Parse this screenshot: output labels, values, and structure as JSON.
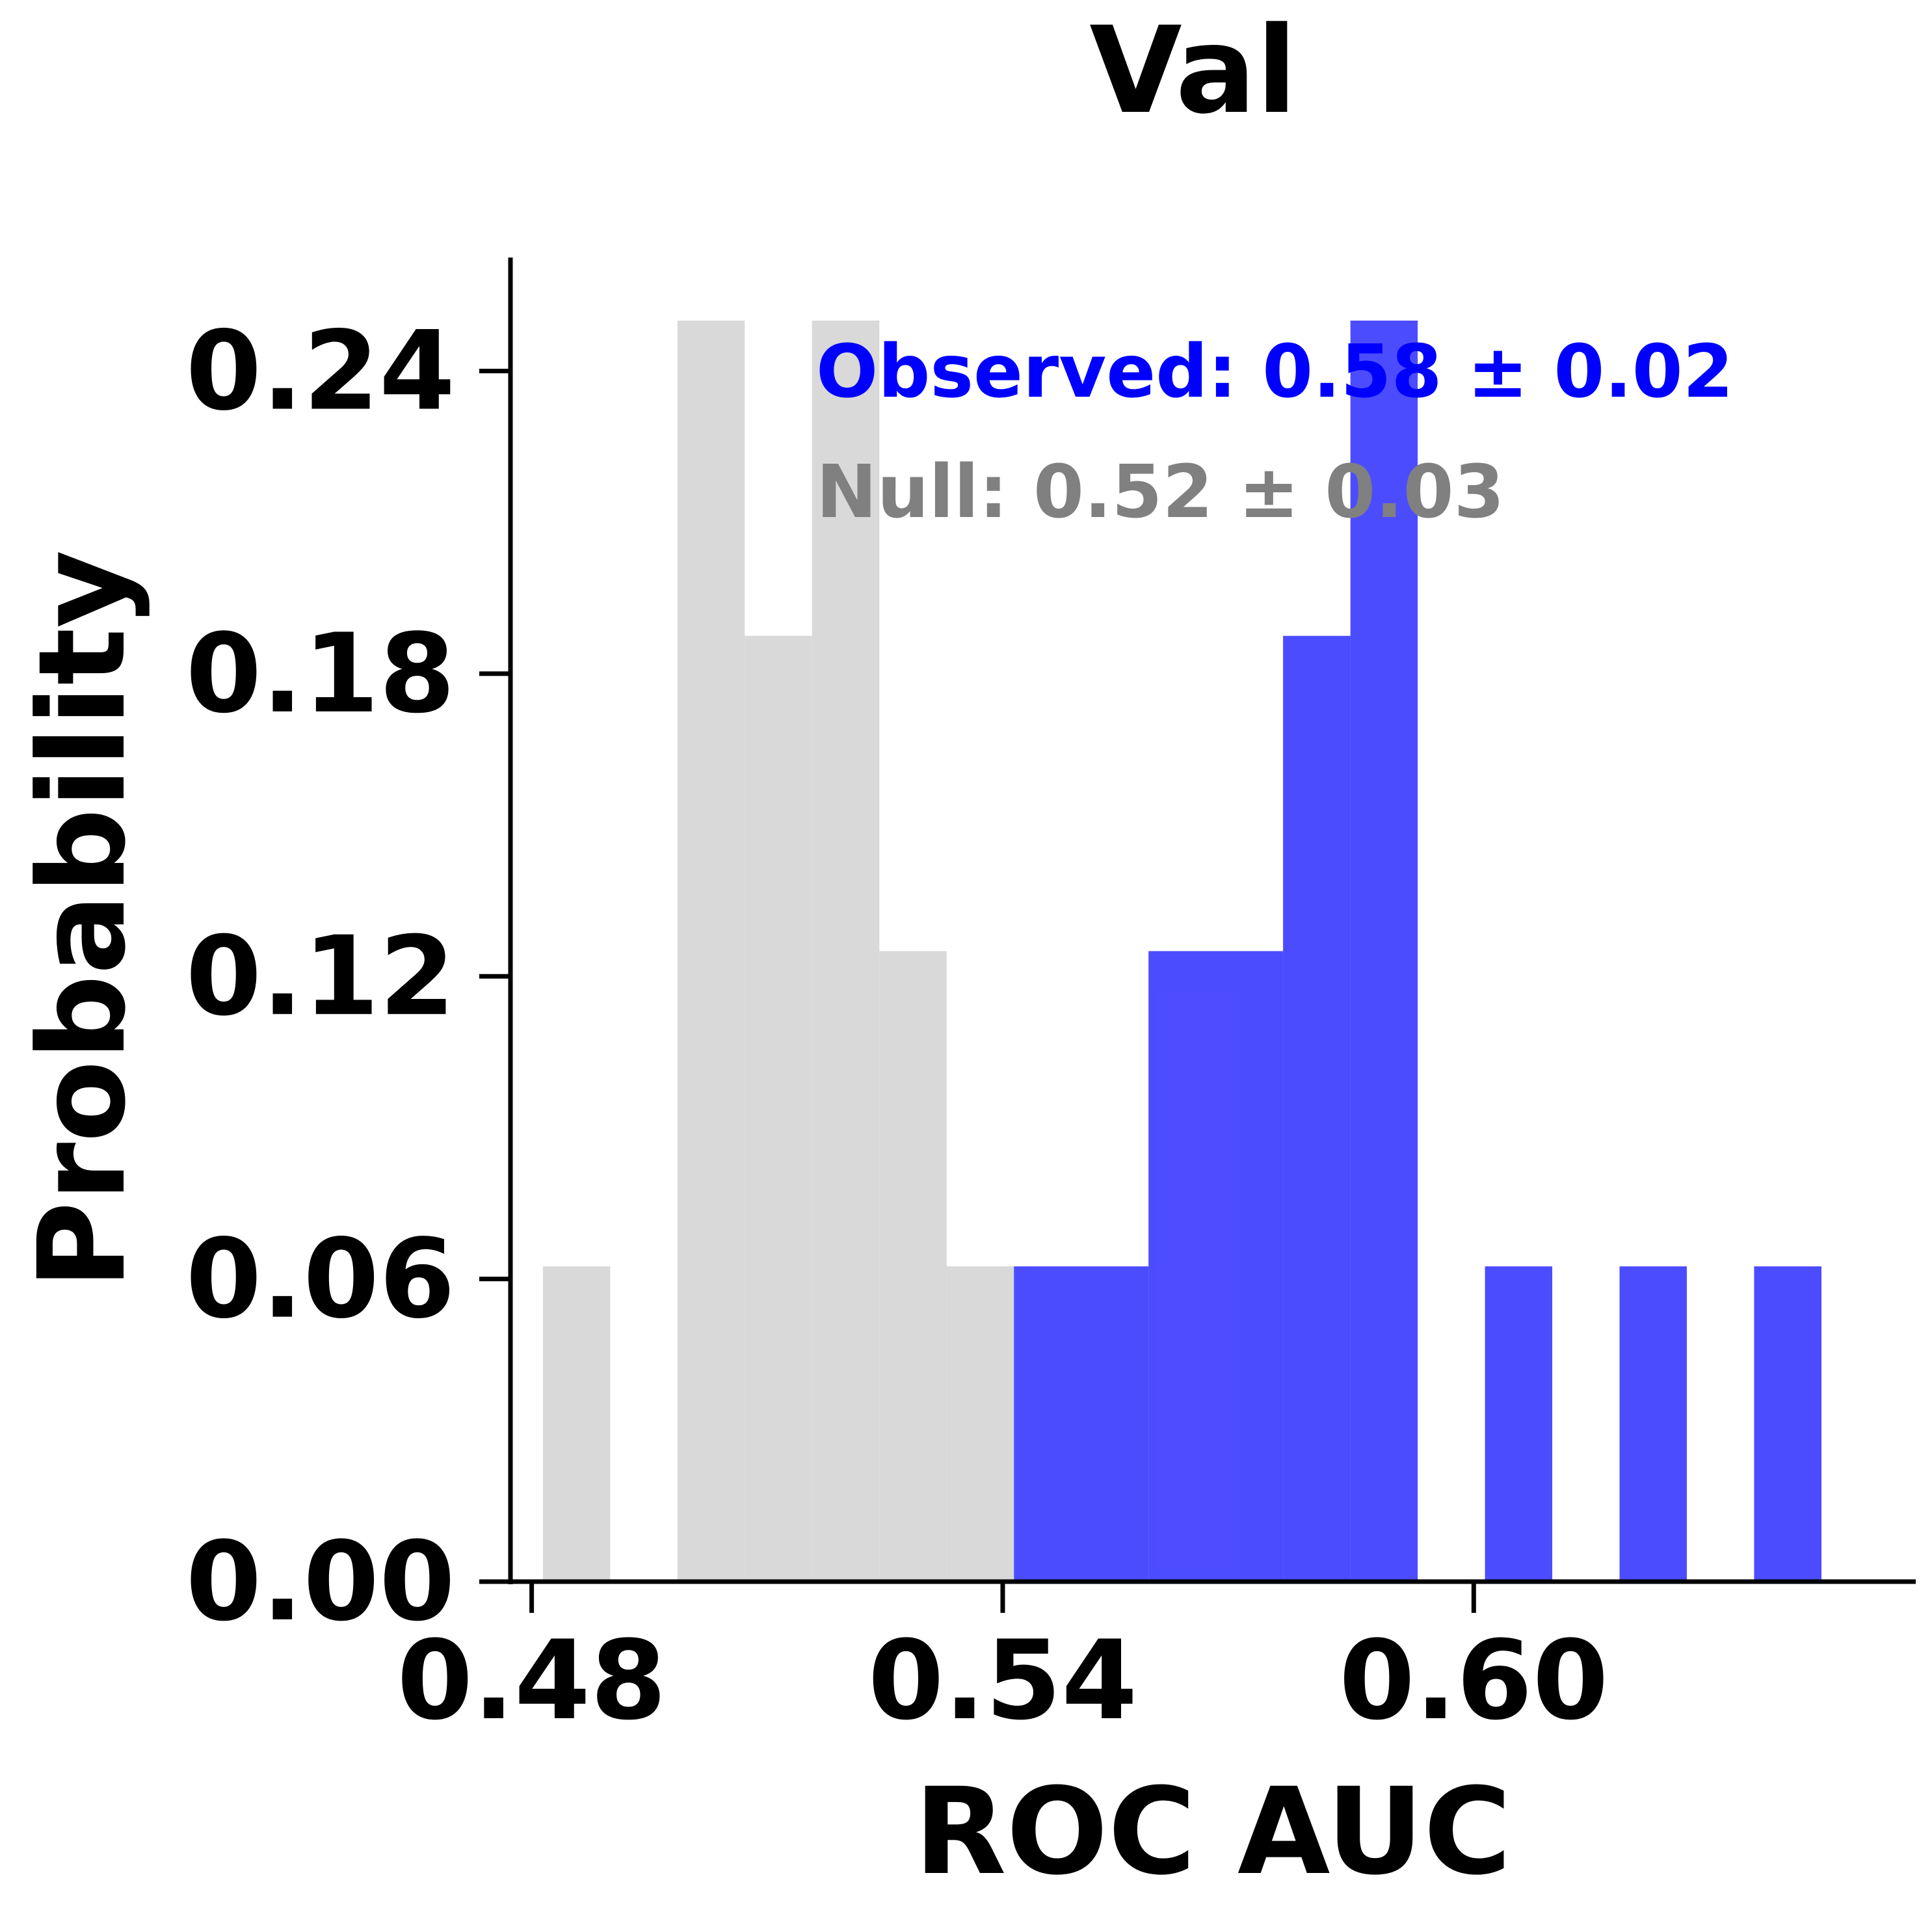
{
  "chart_data": {
    "type": "bar",
    "title": "Val",
    "xlabel": "ROC AUC",
    "ylabel": "Probability",
    "xlim": [
      0.4773,
      0.6563
    ],
    "ylim": [
      0,
      0.2625
    ],
    "xticks": [
      "0.48",
      "0.54",
      "0.60"
    ],
    "yticks": [
      "0.00",
      "0.06",
      "0.12",
      "0.18",
      "0.24"
    ],
    "grid": false,
    "bin_width": 0.00857,
    "series": [
      {
        "color": "#d9d9d9",
        "bins": [
          {
            "x0": 0.48143,
            "x1": 0.49,
            "value": 0.0625
          },
          {
            "x0": 0.49857,
            "x1": 0.50714,
            "value": 0.25
          },
          {
            "x0": 0.50714,
            "x1": 0.51571,
            "value": 0.1875
          },
          {
            "x0": 0.51571,
            "x1": 0.52429,
            "value": 0.25
          },
          {
            "x0": 0.52429,
            "x1": 0.53286,
            "value": 0.125
          },
          {
            "x0": 0.53286,
            "x1": 0.54143,
            "value": 0.0625
          }
        ]
      },
      {
        "color": "#0000ff",
        "bins": [
          {
            "x0": 0.54143,
            "x1": 0.55857,
            "value": 0.0625
          },
          {
            "x0": 0.55857,
            "x1": 0.57571,
            "value": 0.125
          },
          {
            "x0": 0.57571,
            "x1": 0.58429,
            "value": 0.1875
          },
          {
            "x0": 0.58429,
            "x1": 0.59286,
            "value": 0.25
          },
          {
            "x0": 0.60143,
            "x1": 0.61,
            "value": 0.0625
          },
          {
            "x0": 0.61857,
            "x1": 0.62714,
            "value": 0.0625
          },
          {
            "x0": 0.63571,
            "x1": 0.64429,
            "value": 0.0625
          }
        ]
      }
    ],
    "annotations": [
      {
        "text": "Observed: 0.58 ± 0.02",
        "color": "#0000ff"
      },
      {
        "text": "Null: 0.52 ± 0.03",
        "color": "#808080"
      }
    ]
  }
}
